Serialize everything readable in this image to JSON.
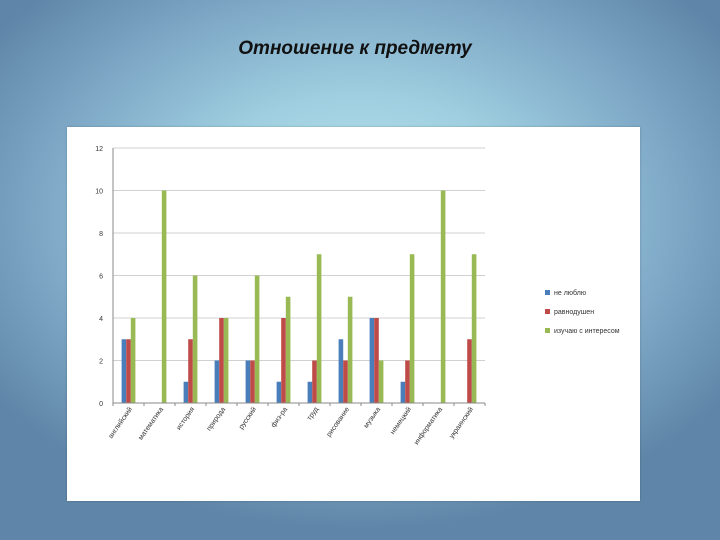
{
  "slide": {
    "title": "Отношение к предмету"
  },
  "chart_data": {
    "type": "bar",
    "categories": [
      "английский",
      "математика",
      "история",
      "природа",
      "русский",
      "физ-ра",
      "труд",
      "рисование",
      "музыка",
      "немецкий",
      "информатика",
      "украинский"
    ],
    "series": [
      {
        "name": "не люблю",
        "color": "#4a7ebb",
        "values": [
          3,
          0,
          1,
          2,
          2,
          1,
          1,
          3,
          4,
          1,
          0,
          0
        ]
      },
      {
        "name": "равнодушен",
        "color": "#be4b48",
        "values": [
          3,
          0,
          3,
          4,
          2,
          4,
          2,
          2,
          4,
          2,
          0,
          3
        ]
      },
      {
        "name": "изучаю с интересом",
        "color": "#98b954",
        "values": [
          4,
          10,
          6,
          4,
          6,
          5,
          7,
          5,
          2,
          7,
          10,
          7
        ]
      }
    ],
    "yticks": [
      "0",
      "2",
      "4",
      "6",
      "8",
      "10",
      "12"
    ],
    "ylim": [
      0,
      12
    ],
    "grid": true,
    "legend": "right"
  }
}
